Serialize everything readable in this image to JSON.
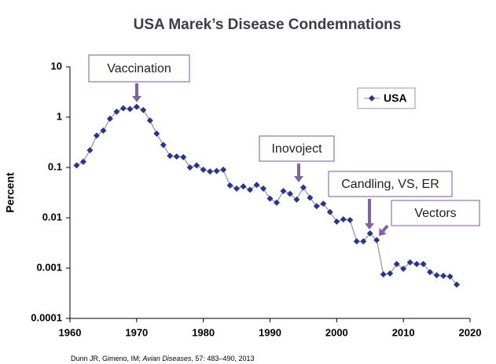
{
  "chart_data": {
    "type": "line",
    "title": "USA Marek’s Disease Condemnations",
    "y_label": "Percent",
    "log_y": true,
    "xlim": [
      1960,
      2020
    ],
    "xticks": [
      1960,
      1970,
      1980,
      1990,
      2000,
      2010,
      2020
    ],
    "ylim": [
      0.0001,
      10
    ],
    "yticks": [
      0.0001,
      0.001,
      0.01,
      0.1,
      1,
      10
    ],
    "grid": false,
    "legend": "upper right",
    "x": [
      1961,
      1962,
      1963,
      1964,
      1965,
      1966,
      1967,
      1968,
      1969,
      1970,
      1971,
      1972,
      1973,
      1974,
      1975,
      1976,
      1977,
      1978,
      1979,
      1980,
      1981,
      1982,
      1983,
      1984,
      1985,
      1986,
      1987,
      1988,
      1989,
      1990,
      1991,
      1992,
      1993,
      1994,
      1995,
      1996,
      1997,
      1998,
      1999,
      2000,
      2001,
      2002,
      2003,
      2004,
      2005,
      2006,
      2007,
      2008,
      2009,
      2010,
      2011,
      2012,
      2013,
      2014,
      2015,
      2016,
      2017,
      2018
    ],
    "series": [
      {
        "name": "USA",
        "color": "#2b3585",
        "values": [
          0.11,
          0.13,
          0.22,
          0.43,
          0.54,
          0.93,
          1.28,
          1.5,
          1.45,
          1.6,
          1.38,
          0.86,
          0.47,
          0.28,
          0.17,
          0.165,
          0.16,
          0.1,
          0.11,
          0.09,
          0.083,
          0.085,
          0.09,
          0.044,
          0.038,
          0.042,
          0.036,
          0.045,
          0.038,
          0.024,
          0.02,
          0.034,
          0.03,
          0.023,
          0.04,
          0.025,
          0.017,
          0.019,
          0.013,
          0.0084,
          0.0093,
          0.009,
          0.0034,
          0.0034,
          0.0049,
          0.0036,
          0.00075,
          0.00078,
          0.0012,
          0.00097,
          0.0013,
          0.0012,
          0.0012,
          0.00083,
          0.00072,
          0.0007,
          0.00068,
          0.00047
        ]
      }
    ],
    "annotations": [
      "Vaccination",
      "Inovoject",
      "Candling, VS, ER",
      "Vectors"
    ],
    "citation": [
      "Dunn JR, Gimeno, IM; ",
      "Avian Diseases",
      ", 57: 483–490, 2013"
    ]
  }
}
